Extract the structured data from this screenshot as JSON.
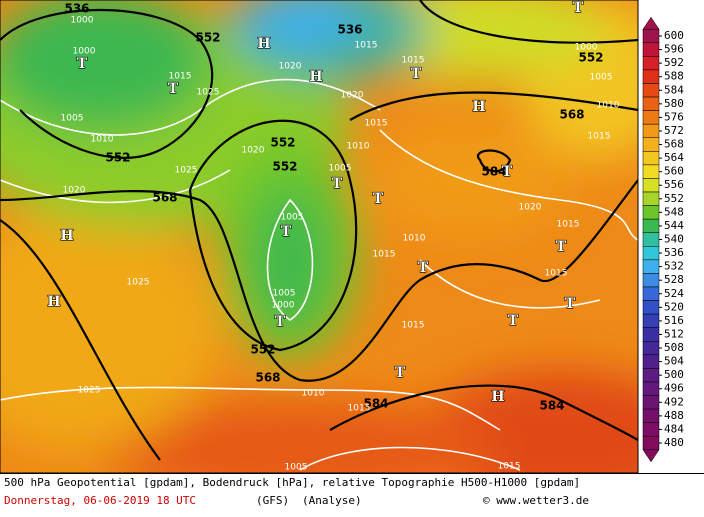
{
  "map": {
    "labels": [
      "536",
      "552",
      "536",
      "552",
      "552",
      "552",
      "568",
      "552",
      "568",
      "584",
      "568",
      "552",
      "584",
      "584",
      "1000",
      "1000",
      "1015",
      "1025",
      "1005",
      "1010",
      "1020",
      "1025",
      "1020",
      "1020",
      "1020",
      "1015",
      "1015",
      "1010",
      "1005",
      "1005",
      "1005",
      "1000",
      "1010",
      "1015",
      "1015",
      "1015",
      "1005",
      "1010",
      "1015",
      "1020",
      "1015",
      "1015",
      "1025",
      "1025",
      "1010",
      "1015",
      "1015",
      "1005",
      "1000",
      "T",
      "T",
      "H",
      "H",
      "T",
      "H",
      "T",
      "T",
      "T",
      "T",
      "T",
      "H",
      "H",
      "T",
      "T",
      "T",
      "T",
      "T",
      "T",
      "H"
    ]
  },
  "colorbar": {
    "ticks": [
      600,
      596,
      592,
      588,
      584,
      580,
      576,
      572,
      568,
      564,
      560,
      556,
      552,
      548,
      544,
      540,
      536,
      532,
      528,
      524,
      520,
      516,
      512,
      508,
      504,
      500,
      496,
      492,
      488,
      484,
      480
    ],
    "colors": [
      "#a0144e",
      "#c0143a",
      "#d8202a",
      "#e03018",
      "#e64a14",
      "#ea6214",
      "#ee7a14",
      "#f09a18",
      "#f2b01c",
      "#f4c620",
      "#f2dc22",
      "#d6e024",
      "#a6d428",
      "#6cc62a",
      "#3cb850",
      "#30c0a0",
      "#30c8d8",
      "#40b0ec",
      "#3c8ce4",
      "#3868d8",
      "#3450c8",
      "#3440b4",
      "#3830a4",
      "#442898",
      "#50208c",
      "#5c1c84",
      "#64187c",
      "#6c1474",
      "#74106c",
      "#7c0c64",
      "#840a5c"
    ]
  },
  "footer": {
    "line1": "500 hPa Geopotential [gpdam], Bodendruck [hPa], relative Topographie H500-H1000 [gpdam]",
    "date": "Donnerstag, 06-06-2019  18 UTC",
    "model": "(GFS)",
    "analysis": "(Analyse)",
    "copyright": "© www.wetter3.de"
  }
}
